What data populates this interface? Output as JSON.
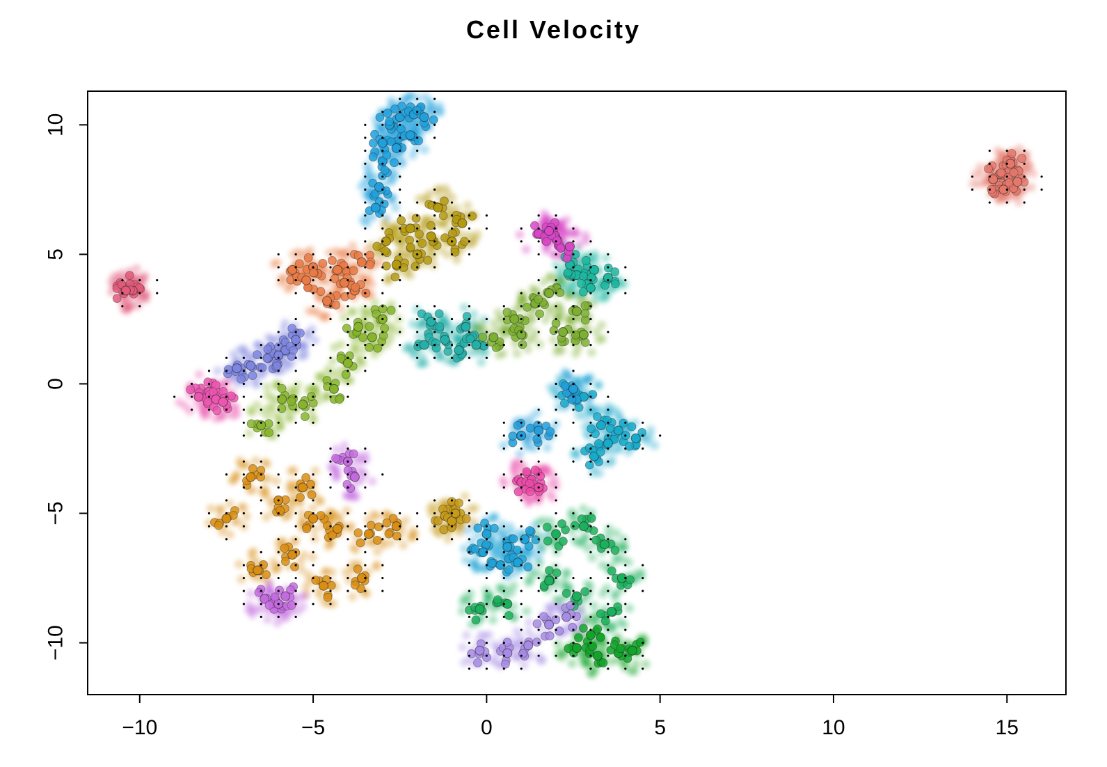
{
  "chart_data": {
    "type": "scatter",
    "title": "Cell Velocity",
    "xlabel": "",
    "ylabel": "",
    "xlim": [
      -11.5,
      16.7
    ],
    "ylim": [
      -12.0,
      11.3
    ],
    "xticks": [
      -10,
      -5,
      0,
      5,
      10,
      15
    ],
    "yticks": [
      -10,
      -5,
      0,
      5,
      10
    ],
    "xtick_labels": [
      "−10",
      "−5",
      "0",
      "5",
      "10",
      "15"
    ],
    "ytick_labels": [
      "−10",
      "−5",
      "0",
      "5",
      "10"
    ],
    "grid": false,
    "legend": "none",
    "clusters": [
      {
        "color": "#1fa0dc",
        "points": [
          [
            -3.2,
            6.8
          ],
          [
            -3.1,
            7.6
          ],
          [
            -3.0,
            8.6
          ],
          [
            -3.0,
            9.3
          ],
          [
            -2.8,
            10.0
          ],
          [
            -2.5,
            10.3
          ],
          [
            -2.1,
            10.4
          ],
          [
            -1.8,
            10.3
          ],
          [
            -2.2,
            9.6
          ],
          [
            -2.6,
            9.1
          ]
        ]
      },
      {
        "color": "#e5786b",
        "points": [
          [
            14.8,
            8.1
          ],
          [
            15.0,
            7.7
          ],
          [
            15.2,
            8.2
          ],
          [
            14.9,
            7.5
          ],
          [
            15.1,
            8.5
          ],
          [
            14.6,
            7.9
          ],
          [
            15.3,
            7.8
          ]
        ]
      },
      {
        "color": "#ea7a44",
        "points": [
          [
            -5.6,
            4.4
          ],
          [
            -5.0,
            4.5
          ],
          [
            -4.3,
            4.4
          ],
          [
            -3.8,
            3.6
          ],
          [
            -4.6,
            3.2
          ],
          [
            -5.2,
            4.0
          ],
          [
            -3.6,
            4.7
          ],
          [
            -4.1,
            3.9
          ]
        ]
      },
      {
        "color": "#b59a10",
        "points": [
          [
            -2.9,
            5.5
          ],
          [
            -2.2,
            6.0
          ],
          [
            -1.4,
            6.8
          ],
          [
            -0.7,
            6.2
          ],
          [
            -1.0,
            5.5
          ],
          [
            -2.0,
            5.0
          ],
          [
            -2.6,
            4.6
          ],
          [
            -1.6,
            5.7
          ]
        ]
      },
      {
        "color": "#86b52a",
        "points": [
          [
            -3.7,
            2.2
          ],
          [
            -3.3,
            1.8
          ],
          [
            -4.0,
            0.8
          ],
          [
            -4.4,
            -0.2
          ],
          [
            -5.3,
            -0.8
          ],
          [
            -5.9,
            -0.6
          ],
          [
            -6.5,
            -1.6
          ],
          [
            -3.0,
            2.5
          ]
        ]
      },
      {
        "color": "#22b0a8",
        "points": [
          [
            -1.8,
            1.5
          ],
          [
            -1.2,
            1.7
          ],
          [
            -0.6,
            2.2
          ],
          [
            -0.8,
            1.3
          ],
          [
            -1.6,
            2.4
          ],
          [
            -0.3,
            1.5
          ]
        ]
      },
      {
        "color": "#7cb030",
        "points": [
          [
            0.2,
            1.8
          ],
          [
            0.8,
            2.5
          ],
          [
            1.4,
            3.1
          ],
          [
            1.0,
            1.9
          ],
          [
            2.2,
            2.0
          ],
          [
            2.6,
            2.8
          ],
          [
            2.8,
            1.9
          ],
          [
            1.8,
            3.5
          ]
        ]
      },
      {
        "color": "#1bb7a0",
        "points": [
          [
            2.6,
            4.2
          ],
          [
            3.1,
            4.4
          ],
          [
            3.5,
            4.1
          ],
          [
            3.0,
            3.7
          ],
          [
            2.4,
            4.6
          ]
        ]
      },
      {
        "color": "#d846c7",
        "points": [
          [
            1.5,
            5.8
          ],
          [
            2.0,
            5.6
          ],
          [
            2.4,
            5.3
          ],
          [
            1.8,
            5.9
          ]
        ]
      },
      {
        "color": "#7e85e0",
        "points": [
          [
            -6.8,
            0.7
          ],
          [
            -6.3,
            1.0
          ],
          [
            -5.8,
            1.3
          ],
          [
            -5.5,
            1.7
          ],
          [
            -6.0,
            1.1
          ],
          [
            -7.2,
            0.6
          ]
        ]
      },
      {
        "color": "#ec55b0",
        "points": [
          [
            -8.3,
            -0.5
          ],
          [
            -8.0,
            -0.3
          ],
          [
            -7.8,
            -0.6
          ],
          [
            -7.6,
            -0.7
          ]
        ]
      },
      {
        "color": "#e35a7a",
        "points": [
          [
            -10.3,
            3.7
          ],
          [
            -10.2,
            3.6
          ],
          [
            -10.4,
            3.6
          ]
        ]
      },
      {
        "color": "#d98e13",
        "points": [
          [
            -7.5,
            -5.2
          ],
          [
            -6.8,
            -3.6
          ],
          [
            -6.0,
            -4.5
          ],
          [
            -5.3,
            -4.0
          ],
          [
            -4.3,
            -5.6
          ],
          [
            -3.4,
            -5.8
          ],
          [
            -2.6,
            -5.5
          ],
          [
            -5.6,
            -6.6
          ],
          [
            -6.6,
            -7.2
          ],
          [
            -4.7,
            -7.8
          ],
          [
            -3.6,
            -7.5
          ],
          [
            -5.0,
            -5.2
          ]
        ]
      },
      {
        "color": "#c46ae0",
        "points": [
          [
            -4.0,
            -3.0
          ],
          [
            -3.8,
            -3.6
          ],
          [
            -6.4,
            -8.3
          ],
          [
            -6.0,
            -8.5
          ],
          [
            -5.8,
            -8.2
          ]
        ]
      },
      {
        "color": "#1ea2d8",
        "points": [
          [
            0.0,
            -5.8
          ],
          [
            0.6,
            -6.3
          ],
          [
            1.1,
            -6.0
          ],
          [
            0.4,
            -7.0
          ],
          [
            0.9,
            -6.9
          ],
          [
            -0.1,
            -6.5
          ]
        ]
      },
      {
        "color": "#1bb05c",
        "points": [
          [
            2.0,
            -5.8
          ],
          [
            2.8,
            -5.5
          ],
          [
            3.4,
            -6.2
          ],
          [
            3.9,
            -7.5
          ],
          [
            3.6,
            -8.8
          ],
          [
            1.8,
            -7.6
          ],
          [
            2.6,
            -8.2
          ],
          [
            0.6,
            -8.5
          ],
          [
            -0.2,
            -8.7
          ]
        ]
      },
      {
        "color": "#12a52a",
        "points": [
          [
            2.6,
            -10.2
          ],
          [
            3.2,
            -10.5
          ],
          [
            3.8,
            -10.4
          ],
          [
            4.2,
            -10.3
          ],
          [
            3.0,
            -9.7
          ]
        ]
      },
      {
        "color": "#a78be6",
        "points": [
          [
            -0.2,
            -10.3
          ],
          [
            0.6,
            -10.4
          ],
          [
            1.2,
            -10.1
          ],
          [
            1.8,
            -9.3
          ],
          [
            2.3,
            -9.0
          ]
        ]
      },
      {
        "color": "#18aacb",
        "points": [
          [
            2.4,
            -0.4
          ],
          [
            2.8,
            -0.5
          ],
          [
            3.3,
            -1.6
          ],
          [
            3.8,
            -1.8
          ],
          [
            4.3,
            -2.1
          ],
          [
            3.1,
            -2.8
          ],
          [
            3.5,
            -2.3
          ]
        ]
      },
      {
        "color": "#229edb",
        "points": [
          [
            1.0,
            -2.0
          ],
          [
            1.5,
            -1.8
          ],
          [
            2.5,
            -0.2
          ]
        ]
      },
      {
        "color": "#ec4aa8",
        "points": [
          [
            1.0,
            -3.8
          ],
          [
            1.3,
            -3.7
          ],
          [
            1.5,
            -4.0
          ]
        ]
      },
      {
        "color": "#c79a1a",
        "points": [
          [
            -1.2,
            -5.1
          ],
          [
            -1.0,
            -5.3
          ],
          [
            -0.9,
            -5.0
          ]
        ]
      }
    ]
  }
}
